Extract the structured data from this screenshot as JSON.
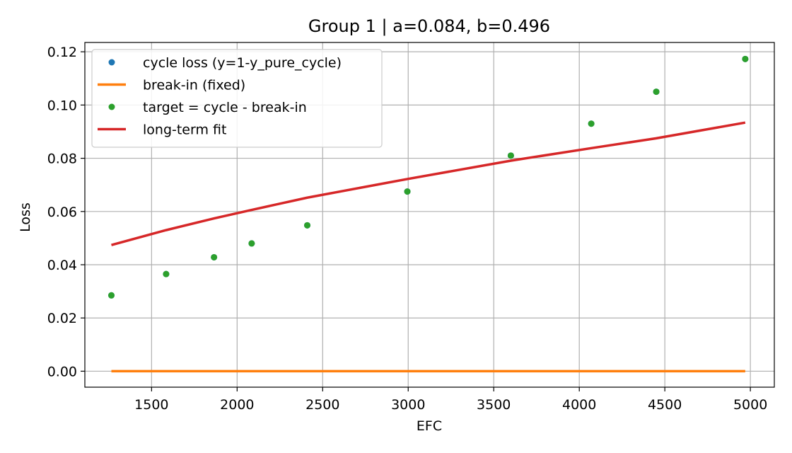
{
  "chart_data": {
    "type": "scatter",
    "title": "Group 1 | a=0.084, b=0.496",
    "xlabel": "EFC",
    "ylabel": "Loss",
    "xlim": [
      1110,
      5140
    ],
    "ylim": [
      -0.006,
      0.1235
    ],
    "xticks": [
      1500,
      2000,
      2500,
      3000,
      3500,
      4000,
      4500,
      5000
    ],
    "yticks": [
      0.0,
      0.02,
      0.04,
      0.06,
      0.08,
      0.1,
      0.12
    ],
    "xtick_labels": [
      "1500",
      "2000",
      "2500",
      "3000",
      "3500",
      "4000",
      "4500",
      "5000"
    ],
    "ytick_labels": [
      "0.00",
      "0.02",
      "0.04",
      "0.06",
      "0.08",
      "0.10",
      "0.12"
    ],
    "grid": true,
    "legend_position": "upper-left",
    "series": [
      {
        "name": "cycle loss (y=1-y_pure_cycle)",
        "kind": "scatter",
        "color": "#1f77b4",
        "x": [
          1265,
          1585,
          1865,
          2085,
          2410,
          2995,
          3600,
          4070,
          4450,
          4970
        ],
        "y": [
          0.0285,
          0.0365,
          0.0428,
          0.048,
          0.0548,
          0.0675,
          0.081,
          0.093,
          0.105,
          0.1173
        ]
      },
      {
        "name": "break-in (fixed)",
        "kind": "line",
        "color": "#ff7f0e",
        "x": [
          1265,
          4970
        ],
        "y": [
          0.0,
          0.0
        ]
      },
      {
        "name": "target = cycle - break-in",
        "kind": "scatter",
        "color": "#2ca02c",
        "x": [
          1265,
          1585,
          1865,
          2085,
          2410,
          2995,
          3600,
          4070,
          4450,
          4970
        ],
        "y": [
          0.0285,
          0.0365,
          0.0428,
          0.048,
          0.0548,
          0.0675,
          0.081,
          0.093,
          0.105,
          0.1173
        ]
      },
      {
        "name": "long-term fit",
        "kind": "line",
        "color": "#d62728",
        "x": [
          1265,
          1585,
          1865,
          2085,
          2410,
          2995,
          3600,
          4070,
          4450,
          4970
        ],
        "y": [
          0.0474,
          0.053,
          0.0574,
          0.0606,
          0.0652,
          0.0722,
          0.0791,
          0.0838,
          0.0875,
          0.0934
        ]
      }
    ]
  }
}
